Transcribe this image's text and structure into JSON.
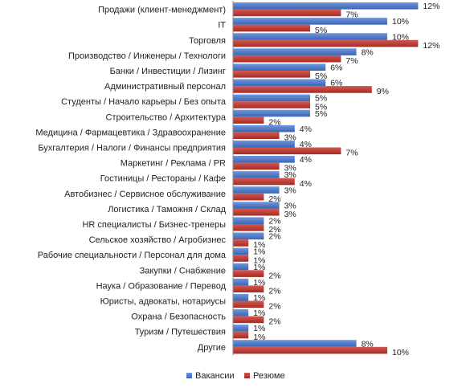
{
  "chart_data": {
    "type": "bar",
    "orientation": "horizontal",
    "categories": [
      "Продажи (клиент-менеджмент)",
      "IT",
      "Торговля",
      "Производство / Инженеры / Технологи",
      "Банки / Инвестиции / Лизинг",
      "Административный персонал",
      "Студенты / Начало карьеры / Без опыта",
      "Строительство / Архитектура",
      "Медицина / Фармацевтика / Здравоохранение",
      "Бухгалтерия / Налоги / Финансы предприятия",
      "Маркетинг / Реклама / PR",
      "Гостиницы / Рестораны / Кафе",
      "Автобизнес / Сервисное обслуживание",
      "Логистика / Таможня / Склад",
      "HR специалисты / Бизнес-тренеры",
      "Сельское хозяйство / Агробизнес",
      "Рабочие специальности / Персонал для дома",
      "Закупки / Снабжение",
      "Наука / Образование / Перевод",
      "Юристы, адвокаты, нотариусы",
      "Охрана / Безопасность",
      "Туризм / Путешествия",
      "Другие"
    ],
    "series": [
      {
        "name": "Вакансии",
        "color": "#4472c4",
        "values": [
          12,
          10,
          10,
          8,
          6,
          6,
          5,
          5,
          4,
          4,
          4,
          3,
          3,
          3,
          2,
          2,
          1,
          1,
          1,
          1,
          1,
          1,
          8
        ],
        "labels": [
          "12%",
          "10%",
          "10%",
          "8%",
          "6%",
          "6%",
          "5%",
          "5%",
          "4%",
          "4%",
          "4%",
          "3%",
          "3%",
          "3%",
          "2%",
          "2%",
          "1%",
          "1%",
          "1%",
          "1%",
          "1%",
          "1%",
          "8%"
        ]
      },
      {
        "name": "Резюме",
        "color": "#c0392b",
        "values": [
          7,
          5,
          12,
          7,
          5,
          9,
          5,
          2,
          3,
          7,
          3,
          4,
          2,
          3,
          2,
          1,
          1,
          2,
          2,
          2,
          2,
          1,
          10
        ],
        "labels": [
          "7%",
          "5%",
          "12%",
          "7%",
          "5%",
          "9%",
          "5%",
          "2%",
          "3%",
          "7%",
          "3%",
          "4%",
          "2%",
          "3%",
          "2%",
          "1%",
          "1%",
          "2%",
          "2%",
          "2%",
          "2%",
          "1%",
          "10%"
        ]
      }
    ],
    "xlim": [
      0,
      12
    ],
    "legend_position": "bottom",
    "grid": false
  }
}
